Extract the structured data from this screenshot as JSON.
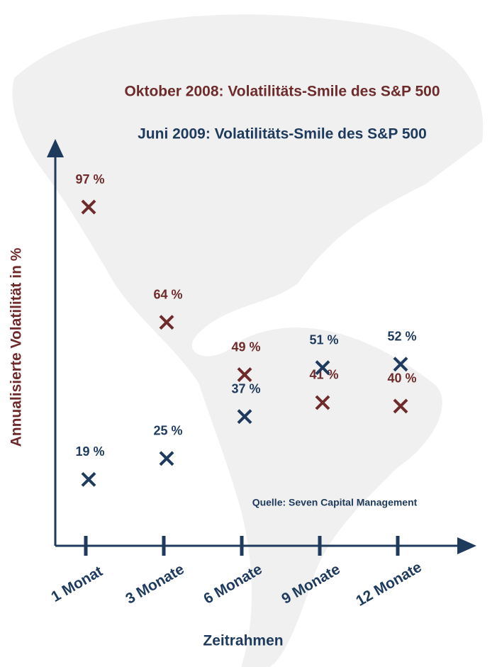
{
  "chart_data": {
    "type": "scatter",
    "categories": [
      "1 Monat",
      "3 Monate",
      "6 Monate",
      "9 Monate",
      "12 Monate"
    ],
    "series": [
      {
        "name": "Oktober 2008: Volatilitäts-Smile des S&P 500",
        "color": "#6e2b2b",
        "values": [
          97,
          64,
          49,
          41,
          40
        ],
        "value_labels": [
          "97 %",
          "64 %",
          "49 %",
          "41 %",
          "40 %"
        ]
      },
      {
        "name": "Juni 2009: Volatilitäts-Smile des S&P 500",
        "color": "#1e3a5c",
        "values": [
          19,
          25,
          37,
          51,
          52
        ],
        "value_labels": [
          "19 %",
          "25 %",
          "37 %",
          "51 %",
          "52 %"
        ]
      }
    ],
    "ylim": [
      0,
      110
    ],
    "y_label": "Annualisierte Volatilität in %",
    "x_label": "Zeitrahmen",
    "source": "Quelle: Seven Capital Management"
  }
}
